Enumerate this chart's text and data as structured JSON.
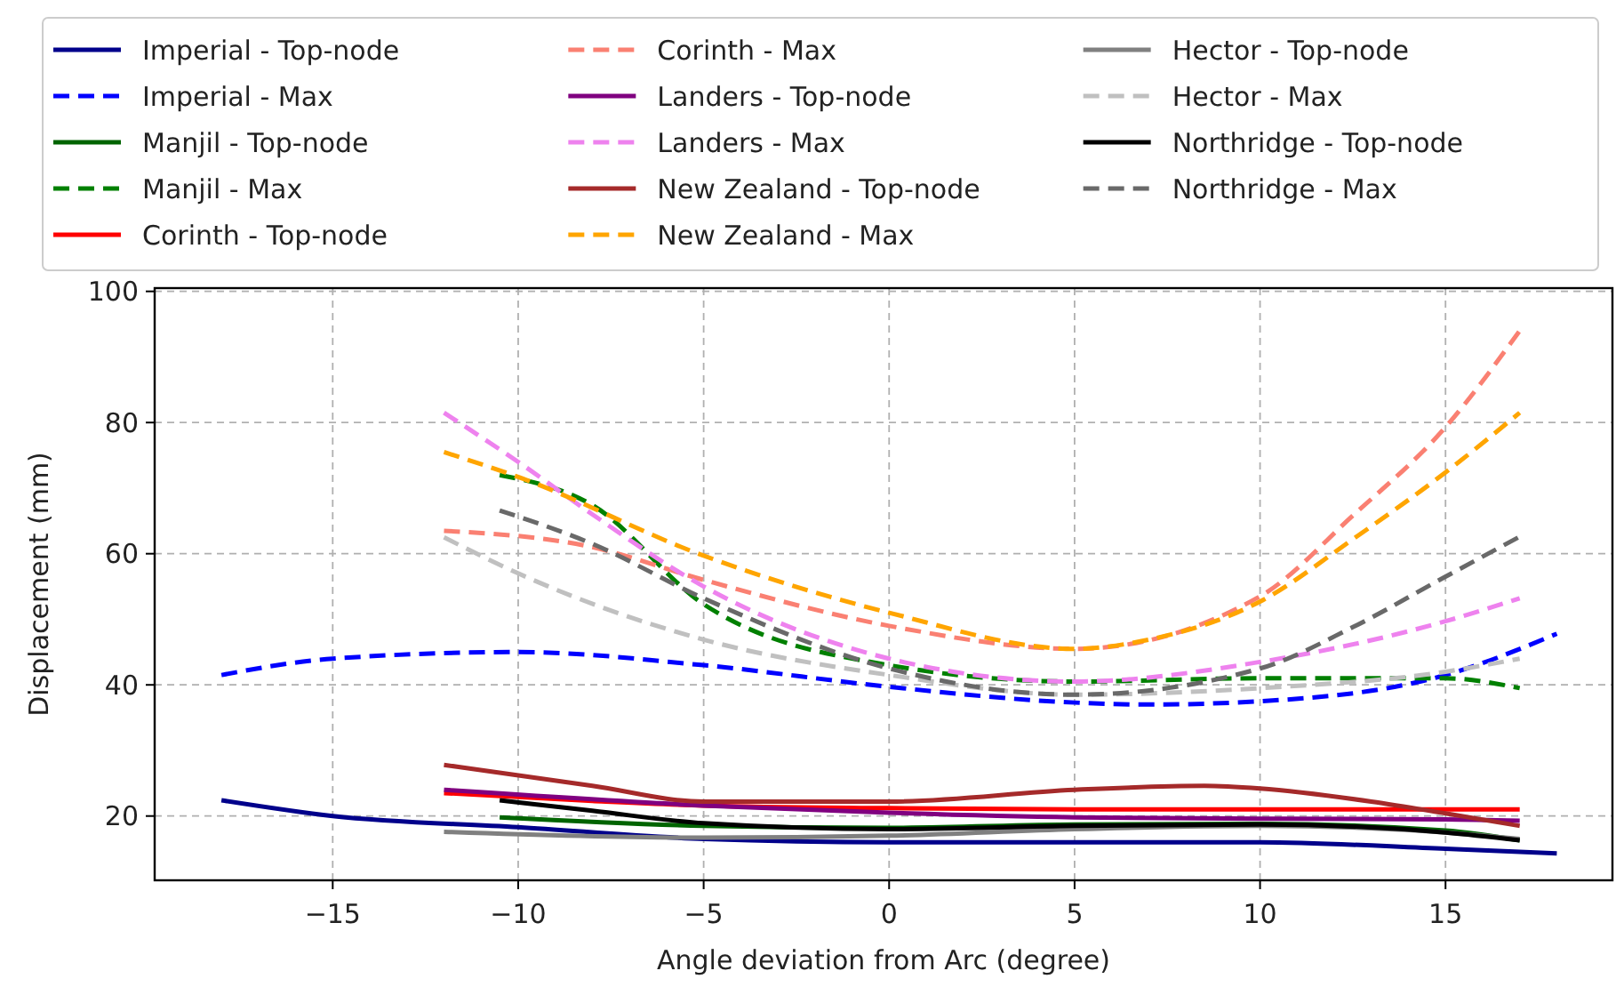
{
  "chart_data": {
    "type": "line",
    "xlabel": "Angle deviation from Arc (degree)",
    "ylabel": "Displacement (mm)",
    "xlim": [
      -19.8,
      19.5
    ],
    "ylim": [
      10.2,
      100.5
    ],
    "xticks": [
      -15,
      -10,
      -5,
      0,
      5,
      10,
      15
    ],
    "yticks": [
      20,
      40,
      60,
      80,
      100
    ],
    "grid": true,
    "legend": "top",
    "marker": "none",
    "series": [
      {
        "name": "Imperial - Top-node",
        "color": "#00008b",
        "line_style": "solid",
        "x": [
          -18,
          -15,
          -10,
          -5,
          0,
          5,
          10,
          15,
          18
        ],
        "values": [
          22.4,
          20,
          18.3,
          16.5,
          16,
          16,
          16,
          15,
          14.3
        ]
      },
      {
        "name": "Imperial - Max",
        "color": "#0000ff",
        "line_style": "dashed",
        "x": [
          -18,
          -15,
          -10,
          -5,
          0,
          5,
          7,
          10,
          15,
          18
        ],
        "values": [
          41.5,
          44,
          45,
          43,
          39.7,
          37.3,
          37,
          37.5,
          41.5,
          47.8
        ]
      },
      {
        "name": "Manjil - Top-node",
        "color": "#006400",
        "line_style": "solid",
        "x": [
          -10.5,
          -5,
          0,
          5,
          10,
          15,
          17
        ],
        "values": [
          19.8,
          18.5,
          18.2,
          18.7,
          18.8,
          17.8,
          16.3
        ]
      },
      {
        "name": "Manjil - Max",
        "color": "#008000",
        "line_style": "dashed",
        "x": [
          -10.5,
          -8,
          -5,
          0,
          5,
          10,
          15,
          17
        ],
        "values": [
          72,
          67.4,
          52.3,
          43,
          40.5,
          41,
          41,
          39.5
        ]
      },
      {
        "name": "Corinth - Top-node",
        "color": "#ff0000",
        "line_style": "solid",
        "x": [
          -12,
          -8,
          -5,
          0,
          5,
          10,
          17
        ],
        "values": [
          23.5,
          22.3,
          21.6,
          21.2,
          21,
          21,
          21
        ]
      },
      {
        "name": "Corinth - Max",
        "color": "#fa8072",
        "line_style": "dashed",
        "x": [
          -12,
          -8,
          -5,
          0,
          5,
          10,
          12.5,
          15,
          17
        ],
        "values": [
          63.5,
          61,
          56,
          49,
          45.5,
          53.5,
          65.8,
          79.3,
          94
        ]
      },
      {
        "name": "Landers - Top-node",
        "color": "#800080",
        "line_style": "solid",
        "x": [
          -12,
          -5,
          0,
          5,
          10,
          15,
          17
        ],
        "values": [
          24,
          21.6,
          20.5,
          19.8,
          19.6,
          19.5,
          19.3
        ]
      },
      {
        "name": "Landers - Max",
        "color": "#ee82ee",
        "line_style": "dashed",
        "x": [
          -12,
          -10,
          -8,
          -5,
          0,
          5,
          10,
          15,
          17
        ],
        "values": [
          81.5,
          74,
          66,
          55,
          44,
          40.5,
          43.5,
          49.7,
          53.2
        ]
      },
      {
        "name": "New Zealand - Top-node",
        "color": "#a52a2a",
        "line_style": "solid",
        "x": [
          -12,
          -8,
          -5,
          0,
          5,
          8.5,
          10,
          13,
          15,
          17
        ],
        "values": [
          27.8,
          24.6,
          22.2,
          22.2,
          24,
          24.6,
          24.2,
          22.2,
          20.4,
          18.5
        ]
      },
      {
        "name": "New Zealand - Max",
        "color": "#ffa500",
        "line_style": "dashed",
        "x": [
          -12,
          -10,
          -5,
          0,
          5,
          7,
          10,
          12.5,
          15,
          17
        ],
        "values": [
          75.5,
          71.7,
          59.7,
          51,
          45.5,
          46.9,
          52.7,
          62.2,
          72.4,
          81.5
        ]
      },
      {
        "name": "Hector - Top-node",
        "color": "#808080",
        "line_style": "solid",
        "x": [
          -12,
          -5,
          0,
          5,
          10,
          15,
          17
        ],
        "values": [
          17.6,
          16.7,
          17,
          18,
          18.5,
          17.5,
          16.5
        ]
      },
      {
        "name": "Hector - Max",
        "color": "#c0c0c0",
        "line_style": "dashed",
        "x": [
          -12,
          -10,
          -5,
          0,
          5,
          10,
          15,
          17
        ],
        "values": [
          62.5,
          57,
          46.9,
          41.5,
          38.5,
          39.5,
          42,
          44
        ]
      },
      {
        "name": "Northridge - Top-node",
        "color": "#000000",
        "line_style": "solid",
        "x": [
          -10.5,
          -8,
          -5,
          0,
          5,
          10,
          15,
          17
        ],
        "values": [
          22.4,
          20.8,
          18.9,
          18,
          18.5,
          18.7,
          17.5,
          16.3
        ]
      },
      {
        "name": "Northridge - Max",
        "color": "#696969",
        "line_style": "dashed",
        "x": [
          -10.5,
          -8,
          -5,
          0,
          5,
          10,
          12.5,
          15,
          17
        ],
        "values": [
          66.6,
          61.5,
          53.2,
          42.5,
          38.5,
          42.5,
          48.8,
          56.5,
          62.6
        ]
      }
    ]
  }
}
